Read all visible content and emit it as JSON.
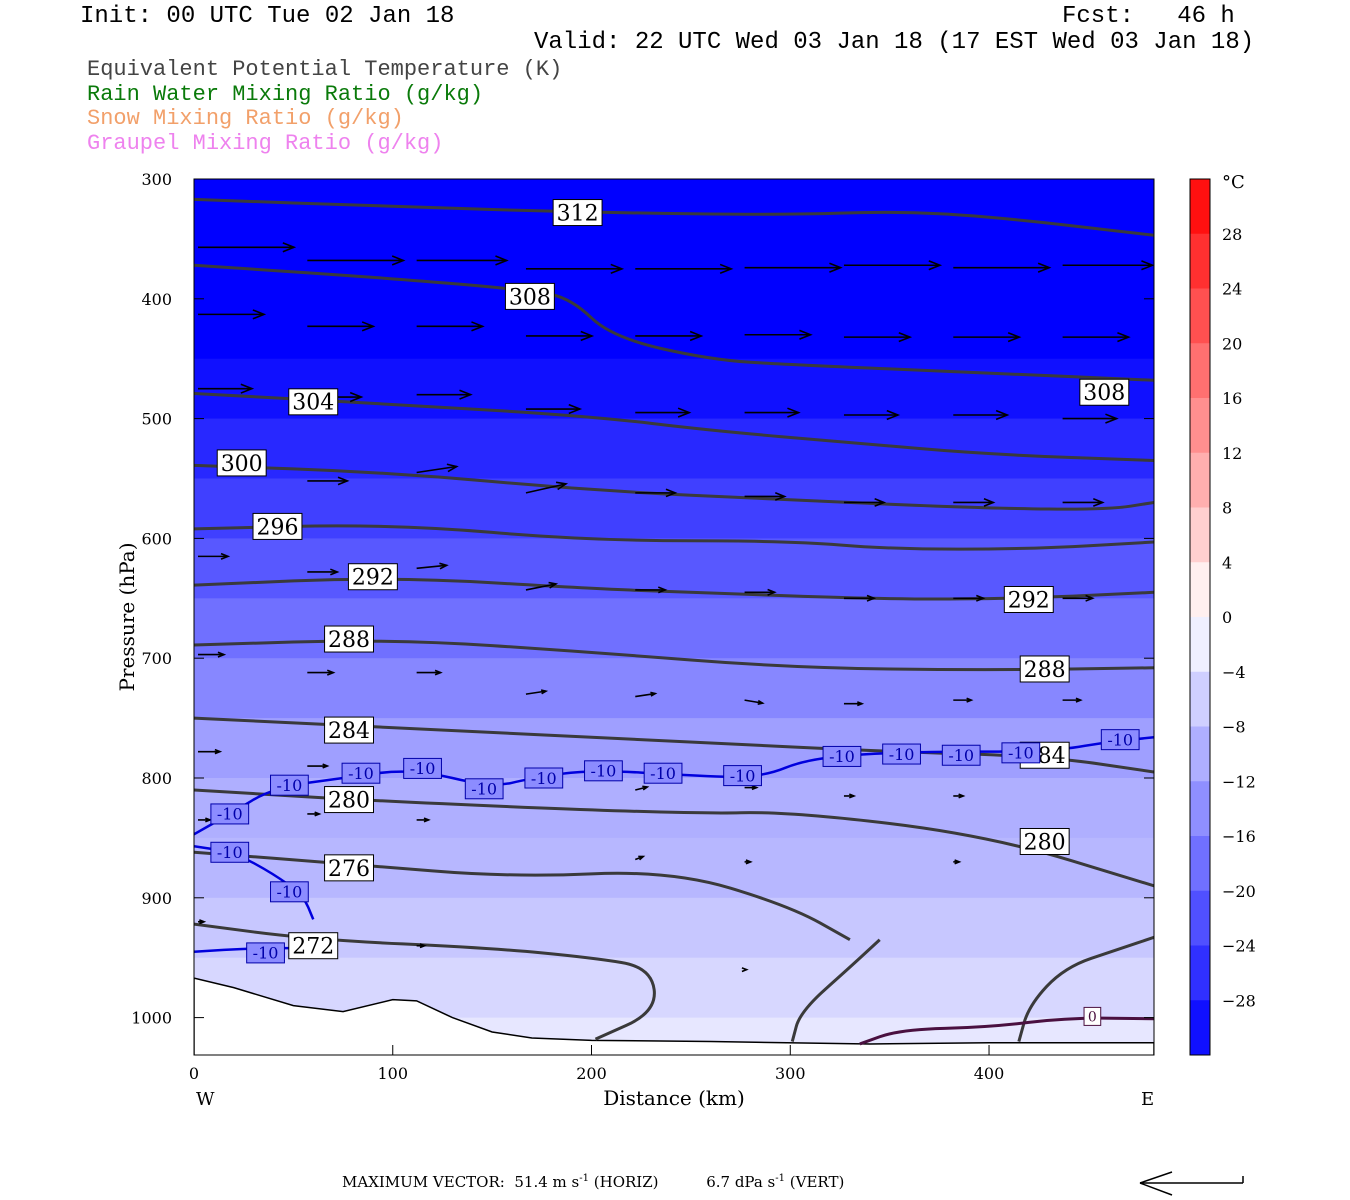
{
  "header": {
    "init": "Init: 00 UTC Tue 02 Jan 18",
    "fcst": "Fcst:   46 h",
    "valid": "Valid: 22 UTC Wed 03 Jan 18 (17 EST Wed 03 Jan 18)"
  },
  "legend": [
    {
      "label": "Equivalent Potential Temperature (K)",
      "color": "#444444"
    },
    {
      "label": "Rain Water Mixing Ratio (g/kg)",
      "color": "#0a7a0a"
    },
    {
      "label": "Snow Mixing Ratio (g/kg)",
      "color": "#f2a06a"
    },
    {
      "label": "Graupel Mixing Ratio (g/kg)",
      "color": "#ee82ee"
    }
  ],
  "footer": {
    "max_vector_label": "MAXIMUM VECTOR:",
    "horiz_value": "51.4 m s",
    "horiz_exp": "-1",
    "horiz_tag": "(HORIZ)",
    "vert_value": "6.7 dPa s",
    "vert_exp": "-1",
    "vert_tag": "(VERT)"
  },
  "chart_data": {
    "type": "cross-section",
    "xlabel": "Distance (km)",
    "ylabel": "Pressure (hPa)",
    "xlim": [
      0,
      483
    ],
    "ylim": [
      1023,
      300
    ],
    "x_ticks": [
      0,
      100,
      200,
      300,
      400
    ],
    "y_ticks": [
      300,
      400,
      500,
      600,
      700,
      800,
      900,
      1000
    ],
    "x_end_labels": {
      "left": "W",
      "right": "E"
    },
    "colorbar": {
      "unit": "°C",
      "range": [
        -32,
        32
      ],
      "step": 4,
      "tick_labels": [
        28,
        24,
        20,
        16,
        12,
        8,
        4,
        0,
        -4,
        -8,
        -12,
        -16,
        -20,
        -24,
        -28
      ],
      "low_color": "#0000ff",
      "mid_color": "#ffffff",
      "high_color": "#ff0000"
    },
    "temperature_fill": [
      {
        "p": 300,
        "t": -32
      },
      {
        "p": 450,
        "t": -30
      },
      {
        "p": 500,
        "t": -27
      },
      {
        "p": 550,
        "t": -24
      },
      {
        "p": 600,
        "t": -21
      },
      {
        "p": 650,
        "t": -18
      },
      {
        "p": 700,
        "t": -15
      },
      {
        "p": 750,
        "t": -12
      },
      {
        "p": 800,
        "t": -10
      },
      {
        "p": 850,
        "t": -9
      },
      {
        "p": 900,
        "t": -7
      },
      {
        "p": 950,
        "t": -5
      },
      {
        "p": 1000,
        "t": -3
      },
      {
        "p": 1023,
        "t": -1
      }
    ],
    "terrain": [
      [
        0,
        967
      ],
      [
        20,
        975
      ],
      [
        50,
        990
      ],
      [
        75,
        995
      ],
      [
        100,
        985
      ],
      [
        112,
        986
      ],
      [
        130,
        1000
      ],
      [
        150,
        1012
      ],
      [
        170,
        1017
      ],
      [
        200,
        1019
      ],
      [
        260,
        1020
      ],
      [
        340,
        1022
      ],
      [
        400,
        1021
      ],
      [
        483,
        1021
      ]
    ],
    "theta_e": [
      {
        "level": 312,
        "points": [
          [
            0,
            317
          ],
          [
            100,
            323
          ],
          [
            200,
            328
          ],
          [
            300,
            330
          ],
          [
            350,
            327
          ],
          [
            400,
            331
          ],
          [
            483,
            347
          ]
        ],
        "label_x": 193,
        "label_p": 328
      },
      {
        "level": 308,
        "points": [
          [
            0,
            372
          ],
          [
            100,
            383
          ],
          [
            170,
            393
          ],
          [
            190,
            400
          ],
          [
            210,
            432
          ],
          [
            260,
            451
          ],
          [
            300,
            455
          ],
          [
            400,
            462
          ],
          [
            483,
            468
          ]
        ],
        "label_x": 169,
        "label_p": 398,
        "label2_x": 458,
        "label2_p": 478
      },
      {
        "level": 304,
        "points": [
          [
            0,
            479
          ],
          [
            100,
            488
          ],
          [
            200,
            498
          ],
          [
            260,
            510
          ],
          [
            330,
            520
          ],
          [
            400,
            530
          ],
          [
            483,
            535
          ]
        ],
        "label_x": 60,
        "label_p": 486
      },
      {
        "level": 300,
        "points": [
          [
            0,
            539
          ],
          [
            100,
            545
          ],
          [
            200,
            560
          ],
          [
            300,
            568
          ],
          [
            400,
            575
          ],
          [
            460,
            576
          ],
          [
            483,
            570
          ]
        ],
        "label_x": 24,
        "label_p": 537
      },
      {
        "level": 296,
        "points": [
          [
            0,
            592
          ],
          [
            100,
            588
          ],
          [
            200,
            602
          ],
          [
            300,
            602
          ],
          [
            350,
            609
          ],
          [
            420,
            609
          ],
          [
            483,
            603
          ]
        ],
        "label_x": 42,
        "label_p": 590
      },
      {
        "level": 292,
        "points": [
          [
            0,
            639
          ],
          [
            100,
            632
          ],
          [
            200,
            642
          ],
          [
            250,
            645
          ],
          [
            350,
            651
          ],
          [
            420,
            650
          ],
          [
            483,
            645
          ]
        ],
        "label_x": 90,
        "label_p": 632,
        "label2_x": 420,
        "label2_p": 651
      },
      {
        "level": 288,
        "points": [
          [
            0,
            689
          ],
          [
            100,
            684
          ],
          [
            200,
            695
          ],
          [
            300,
            708
          ],
          [
            400,
            710
          ],
          [
            483,
            708
          ]
        ],
        "label_x": 78,
        "label_p": 684,
        "label2_x": 428,
        "label2_p": 709
      },
      {
        "level": 284,
        "points": [
          [
            0,
            750
          ],
          [
            100,
            758
          ],
          [
            250,
            770
          ],
          [
            350,
            778
          ],
          [
            430,
            782
          ],
          [
            483,
            795
          ]
        ],
        "label_x": 78,
        "label_p": 760,
        "label2_x": 428,
        "label2_p": 781
      },
      {
        "level": 280,
        "points": [
          [
            0,
            810
          ],
          [
            100,
            820
          ],
          [
            250,
            830
          ],
          [
            300,
            828
          ],
          [
            400,
            848
          ],
          [
            483,
            890
          ]
        ],
        "label_x": 78,
        "label_p": 818,
        "label2_x": 428,
        "label2_p": 853
      },
      {
        "level": 276,
        "points": [
          [
            0,
            862
          ],
          [
            80,
            872
          ],
          [
            160,
            883
          ],
          [
            240,
            877
          ],
          [
            300,
            907
          ],
          [
            330,
            935
          ]
        ],
        "label_x": 78,
        "label_p": 875
      },
      {
        "level": 272,
        "points": [
          [
            0,
            922
          ],
          [
            60,
            935
          ],
          [
            150,
            942
          ],
          [
            200,
            950
          ],
          [
            230,
            958
          ],
          [
            233,
            995
          ],
          [
            202,
            1018
          ]
        ],
        "label_x": 60,
        "label_p": 940
      },
      {
        "level": 280,
        "points": [
          [
            301,
            1020
          ],
          [
            305,
            995
          ],
          [
            330,
            958
          ],
          [
            345,
            935
          ]
        ],
        "label_x": 0,
        "label_p": 0
      },
      {
        "level": 280,
        "points": [
          [
            415,
            1020
          ],
          [
            420,
            990
          ],
          [
            438,
            958
          ],
          [
            465,
            943
          ],
          [
            483,
            933
          ]
        ],
        "label_x": 0,
        "label_p": 0
      }
    ],
    "isotherm_minus10": {
      "level": -10,
      "segments": [
        [
          [
            0,
            847
          ],
          [
            18,
            830
          ],
          [
            40,
            808
          ],
          [
            75,
            800
          ],
          [
            110,
            792
          ],
          [
            150,
            808
          ],
          [
            170,
            800
          ],
          [
            200,
            793
          ],
          [
            250,
            798
          ],
          [
            285,
            800
          ],
          [
            310,
            783
          ],
          [
            360,
            778
          ],
          [
            430,
            778
          ],
          [
            460,
            770
          ],
          [
            483,
            766
          ]
        ],
        [
          [
            0,
            857
          ],
          [
            20,
            862
          ],
          [
            40,
            880
          ],
          [
            55,
            898
          ],
          [
            60,
            918
          ]
        ],
        [
          [
            0,
            945
          ],
          [
            30,
            942
          ],
          [
            55,
            942
          ]
        ]
      ],
      "labels": [
        [
          18,
          830
        ],
        [
          48,
          806
        ],
        [
          84,
          796
        ],
        [
          115,
          792
        ],
        [
          146,
          809
        ],
        [
          176,
          800
        ],
        [
          206,
          794
        ],
        [
          236,
          796
        ],
        [
          276,
          798
        ],
        [
          326,
          782
        ],
        [
          356,
          780
        ],
        [
          386,
          781
        ],
        [
          416,
          779
        ],
        [
          466,
          768
        ],
        [
          18,
          862
        ],
        [
          48,
          895
        ],
        [
          36,
          946
        ]
      ]
    },
    "isotherm_zero": {
      "level": 0,
      "points": [
        [
          335,
          1022
        ],
        [
          355,
          1010
        ],
        [
          400,
          1008
        ],
        [
          440,
          1000
        ],
        [
          483,
          1001
        ]
      ],
      "label_x": 452,
      "label_p": 999
    },
    "wind_vectors": [
      {
        "x": 0,
        "p": 357,
        "u": 48,
        "w": 0
      },
      {
        "x": 55,
        "p": 368,
        "u": 48,
        "w": 0
      },
      {
        "x": 110,
        "p": 368,
        "u": 45,
        "w": 0
      },
      {
        "x": 165,
        "p": 375,
        "u": 48,
        "w": 0
      },
      {
        "x": 220,
        "p": 375,
        "u": 48,
        "w": 0
      },
      {
        "x": 275,
        "p": 374,
        "u": 48,
        "w": 0
      },
      {
        "x": 325,
        "p": 372,
        "u": 48,
        "w": 0
      },
      {
        "x": 380,
        "p": 374,
        "u": 48,
        "w": 0
      },
      {
        "x": 435,
        "p": 372,
        "u": 45,
        "w": 0
      },
      {
        "x": 0,
        "p": 413,
        "u": 33,
        "w": 0
      },
      {
        "x": 55,
        "p": 423,
        "u": 33,
        "w": 0
      },
      {
        "x": 110,
        "p": 423,
        "u": 33,
        "w": 0
      },
      {
        "x": 165,
        "p": 431,
        "u": 33,
        "w": 0
      },
      {
        "x": 220,
        "p": 431,
        "u": 33,
        "w": 0
      },
      {
        "x": 275,
        "p": 430,
        "u": 33,
        "w": 0
      },
      {
        "x": 325,
        "p": 432,
        "u": 33,
        "w": 0
      },
      {
        "x": 380,
        "p": 432,
        "u": 33,
        "w": 0
      },
      {
        "x": 435,
        "p": 432,
        "u": 33,
        "w": 0
      },
      {
        "x": 0,
        "p": 475,
        "u": 27,
        "w": 0
      },
      {
        "x": 55,
        "p": 482,
        "u": 27,
        "w": 0
      },
      {
        "x": 110,
        "p": 480,
        "u": 27,
        "w": 0
      },
      {
        "x": 165,
        "p": 492,
        "u": 27,
        "w": 0
      },
      {
        "x": 220,
        "p": 495,
        "u": 27,
        "w": 0
      },
      {
        "x": 275,
        "p": 495,
        "u": 27,
        "w": 0
      },
      {
        "x": 325,
        "p": 497,
        "u": 27,
        "w": 0
      },
      {
        "x": 380,
        "p": 497,
        "u": 27,
        "w": 0
      },
      {
        "x": 435,
        "p": 500,
        "u": 27,
        "w": 0
      },
      {
        "x": 55,
        "p": 552,
        "u": 20,
        "w": 0
      },
      {
        "x": 110,
        "p": 545,
        "u": 20,
        "w": 2
      },
      {
        "x": 165,
        "p": 562,
        "u": 20,
        "w": 3
      },
      {
        "x": 220,
        "p": 562,
        "u": 20,
        "w": 0
      },
      {
        "x": 275,
        "p": 565,
        "u": 20,
        "w": 0
      },
      {
        "x": 325,
        "p": 570,
        "u": 20,
        "w": 0
      },
      {
        "x": 380,
        "p": 570,
        "u": 20,
        "w": 0
      },
      {
        "x": 435,
        "p": 570,
        "u": 20,
        "w": 0
      },
      {
        "x": 0,
        "p": 615,
        "u": 15,
        "w": 0
      },
      {
        "x": 55,
        "p": 628,
        "u": 15,
        "w": 0
      },
      {
        "x": 110,
        "p": 625,
        "u": 15,
        "w": 1
      },
      {
        "x": 165,
        "p": 643,
        "u": 15,
        "w": 2
      },
      {
        "x": 220,
        "p": 643,
        "u": 15,
        "w": 0
      },
      {
        "x": 275,
        "p": 645,
        "u": 15,
        "w": 0
      },
      {
        "x": 325,
        "p": 650,
        "u": 15,
        "w": 0
      },
      {
        "x": 380,
        "p": 650,
        "u": 15,
        "w": 0
      },
      {
        "x": 435,
        "p": 650,
        "u": 15,
        "w": 0
      },
      {
        "x": 0,
        "p": 697,
        "u": 13,
        "w": 0
      },
      {
        "x": 55,
        "p": 712,
        "u": 13,
        "w": 0
      },
      {
        "x": 110,
        "p": 712,
        "u": 12,
        "w": 0
      },
      {
        "x": 165,
        "p": 730,
        "u": 10,
        "w": 1
      },
      {
        "x": 220,
        "p": 732,
        "u": 10,
        "w": 1
      },
      {
        "x": 275,
        "p": 735,
        "u": 9,
        "w": -1
      },
      {
        "x": 325,
        "p": 738,
        "u": 9,
        "w": 0
      },
      {
        "x": 380,
        "p": 735,
        "u": 9,
        "w": 0
      },
      {
        "x": 435,
        "p": 735,
        "u": 9,
        "w": 0
      },
      {
        "x": 0,
        "p": 778,
        "u": 11,
        "w": 0
      },
      {
        "x": 55,
        "p": 790,
        "u": 10,
        "w": 0
      },
      {
        "x": 110,
        "p": 790,
        "u": 10,
        "w": -1
      },
      {
        "x": 220,
        "p": 810,
        "u": 6,
        "w": 1
      },
      {
        "x": 275,
        "p": 808,
        "u": 6,
        "w": 0
      },
      {
        "x": 325,
        "p": 815,
        "u": 5,
        "w": 0
      },
      {
        "x": 380,
        "p": 815,
        "u": 5,
        "w": 0
      },
      {
        "x": 0,
        "p": 835,
        "u": 6,
        "w": 0
      },
      {
        "x": 55,
        "p": 830,
        "u": 6,
        "w": 0
      },
      {
        "x": 110,
        "p": 835,
        "u": 6,
        "w": 0
      },
      {
        "x": 220,
        "p": 868,
        "u": 4,
        "w": 1
      },
      {
        "x": 275,
        "p": 870,
        "u": 3,
        "w": 0
      },
      {
        "x": 380,
        "p": 870,
        "u": 3,
        "w": 0
      },
      {
        "x": 110,
        "p": 940,
        "u": 4,
        "w": 0
      },
      {
        "x": 0,
        "p": 920,
        "u": 3,
        "w": 0
      },
      {
        "x": 275,
        "p": 960,
        "u": 1,
        "w": 0
      }
    ]
  }
}
